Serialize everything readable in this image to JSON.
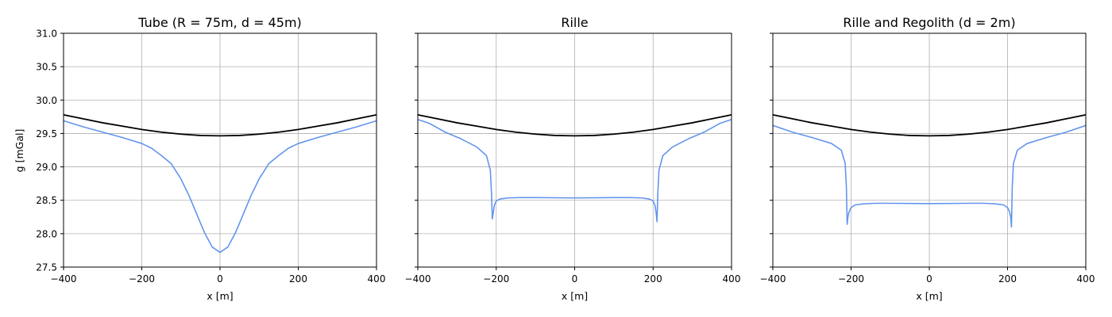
{
  "figure": {
    "ylabel": "g [mGal]"
  },
  "chart_data": [
    {
      "type": "line",
      "title": "Tube (R = 75m, d = 45m)",
      "xlabel": "x [m]",
      "ylabel": "g [mGal]",
      "xlim": [
        -400,
        400
      ],
      "ylim": [
        27.5,
        31.0
      ],
      "xticks": [
        "−400",
        "−200",
        "0",
        "200",
        "400"
      ],
      "yticks": [
        "27.5",
        "28.0",
        "28.5",
        "29.0",
        "29.5",
        "30.0",
        "30.5",
        "31.0"
      ],
      "grid": true,
      "series": [
        {
          "color": "#000000",
          "x": [
            -400,
            -350,
            -300,
            -250,
            -200,
            -150,
            -100,
            -50,
            0,
            50,
            100,
            150,
            200,
            250,
            300,
            350,
            400
          ],
          "y": [
            29.78,
            29.72,
            29.66,
            29.61,
            29.56,
            29.52,
            29.49,
            29.47,
            29.465,
            29.47,
            29.49,
            29.52,
            29.56,
            29.61,
            29.66,
            29.72,
            29.78
          ]
        },
        {
          "color": "#6495ED",
          "x": [
            -400,
            -350,
            -300,
            -250,
            -200,
            -175,
            -150,
            -125,
            -100,
            -80,
            -60,
            -40,
            -20,
            0,
            20,
            40,
            60,
            80,
            100,
            125,
            150,
            175,
            200,
            250,
            300,
            350,
            400
          ],
          "y": [
            29.69,
            29.6,
            29.52,
            29.44,
            29.35,
            29.28,
            29.17,
            29.05,
            28.82,
            28.58,
            28.3,
            28.02,
            27.8,
            27.72,
            27.8,
            28.02,
            28.3,
            28.58,
            28.82,
            29.05,
            29.17,
            29.28,
            29.35,
            29.44,
            29.52,
            29.6,
            29.69
          ]
        }
      ]
    },
    {
      "type": "line",
      "title": "Rille",
      "xlabel": "x [m]",
      "xlim": [
        -400,
        400
      ],
      "ylim": [
        27.5,
        31.0
      ],
      "xticks": [
        "−400",
        "−200",
        "0",
        "200",
        "400"
      ],
      "grid": true,
      "series": [
        {
          "color": "#000000",
          "x": [
            -400,
            -350,
            -300,
            -250,
            -200,
            -150,
            -100,
            -50,
            0,
            50,
            100,
            150,
            200,
            250,
            300,
            350,
            400
          ],
          "y": [
            29.78,
            29.72,
            29.66,
            29.61,
            29.56,
            29.52,
            29.49,
            29.47,
            29.465,
            29.47,
            29.49,
            29.52,
            29.56,
            29.61,
            29.66,
            29.72,
            29.78
          ]
        },
        {
          "color": "#6495ED",
          "x": [
            -400,
            -370,
            -330,
            -290,
            -250,
            -225,
            -215,
            -212,
            -210,
            -208,
            -205,
            -200,
            -190,
            -170,
            -140,
            -100,
            0,
            100,
            140,
            170,
            190,
            200,
            205,
            208,
            210,
            212,
            215,
            225,
            250,
            290,
            330,
            370,
            400
          ],
          "y": [
            29.71,
            29.65,
            29.52,
            29.42,
            29.3,
            29.17,
            28.95,
            28.6,
            28.22,
            28.3,
            28.42,
            28.49,
            28.52,
            28.535,
            28.54,
            28.54,
            28.535,
            28.54,
            28.54,
            28.535,
            28.52,
            28.49,
            28.42,
            28.3,
            28.18,
            28.6,
            28.95,
            29.17,
            29.3,
            29.42,
            29.52,
            29.65,
            29.71
          ]
        }
      ]
    },
    {
      "type": "line",
      "title": "Rille and Regolith (d = 2m)",
      "xlabel": "x [m]",
      "xlim": [
        -400,
        400
      ],
      "ylim": [
        27.5,
        31.0
      ],
      "xticks": [
        "−400",
        "−200",
        "0",
        "200",
        "400"
      ],
      "grid": true,
      "series": [
        {
          "color": "#000000",
          "x": [
            -400,
            -350,
            -300,
            -250,
            -200,
            -150,
            -100,
            -50,
            0,
            50,
            100,
            150,
            200,
            250,
            300,
            350,
            400
          ],
          "y": [
            29.78,
            29.72,
            29.66,
            29.61,
            29.56,
            29.52,
            29.49,
            29.47,
            29.465,
            29.47,
            29.49,
            29.52,
            29.56,
            29.61,
            29.66,
            29.72,
            29.78
          ]
        },
        {
          "color": "#6495ED",
          "x": [
            -400,
            -350,
            -300,
            -250,
            -225,
            -215,
            -212,
            -210,
            -208,
            -205,
            -200,
            -190,
            -170,
            -140,
            -100,
            0,
            100,
            140,
            170,
            190,
            200,
            205,
            208,
            210,
            212,
            215,
            225,
            250,
            300,
            350,
            400
          ],
          "y": [
            29.62,
            29.52,
            29.44,
            29.35,
            29.25,
            29.05,
            28.7,
            28.14,
            28.25,
            28.33,
            28.39,
            28.43,
            28.445,
            28.455,
            28.455,
            28.45,
            28.455,
            28.455,
            28.445,
            28.43,
            28.39,
            28.33,
            28.25,
            28.1,
            28.7,
            29.05,
            29.25,
            29.35,
            29.44,
            29.52,
            29.62
          ]
        }
      ]
    }
  ]
}
